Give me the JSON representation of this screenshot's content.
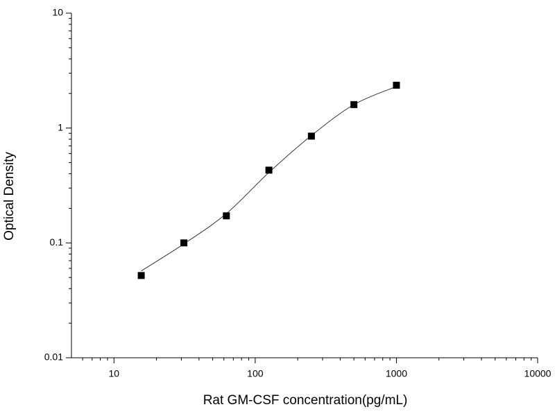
{
  "chart_data": {
    "type": "scatter",
    "log_x": true,
    "log_y": true,
    "x_label": "Rat GM-CSF concentration(pg/mL)",
    "y_label": "Optical Density",
    "x": [
      15.6,
      31.25,
      62.5,
      125,
      250,
      500,
      1000
    ],
    "values": [
      0.052,
      0.1,
      0.172,
      0.43,
      0.85,
      1.6,
      2.36
    ],
    "color": "#000000",
    "fit_curve": {
      "x": [
        15.6,
        31.25,
        62.5,
        125,
        250,
        500,
        1000
      ],
      "values": [
        0.057,
        0.098,
        0.18,
        0.41,
        0.86,
        1.6,
        2.3
      ],
      "color": "#333333"
    },
    "xlim": [
      5,
      10000
    ],
    "xticks": [
      10,
      100,
      1000,
      10000
    ],
    "xminorticks": [
      6,
      7,
      8,
      9,
      20,
      30,
      40,
      50,
      60,
      70,
      80,
      90,
      200,
      300,
      400,
      500,
      600,
      700,
      800,
      900,
      2000,
      3000,
      4000,
      5000,
      6000,
      7000,
      8000,
      9000
    ],
    "ylim": [
      0.01,
      10
    ],
    "yticks": [
      0.01,
      0.1,
      1,
      10
    ],
    "yminorticks": [
      0.02,
      0.03,
      0.04,
      0.05,
      0.06,
      0.07,
      0.08,
      0.09,
      0.2,
      0.3,
      0.4,
      0.5,
      0.6,
      0.7,
      0.8,
      0.9,
      2,
      3,
      4,
      5,
      6,
      7,
      8,
      9
    ]
  }
}
